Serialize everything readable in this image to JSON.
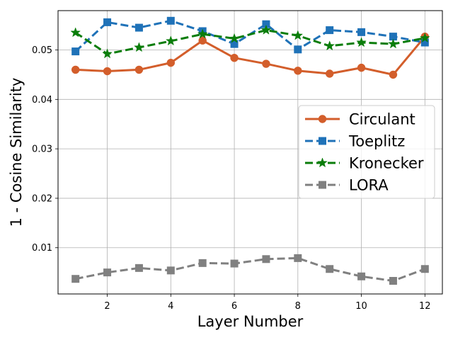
{
  "chart_data": {
    "type": "line",
    "title": "",
    "xlabel": "Layer Number",
    "ylabel": "1 - Cosine Similarity",
    "xlim": [
      0.45,
      12.55
    ],
    "ylim": [
      0.00065,
      0.05795
    ],
    "xticks": [
      2,
      4,
      6,
      8,
      10,
      12
    ],
    "xtick_labels": [
      "2",
      "4",
      "6",
      "8",
      "10",
      "12"
    ],
    "yticks": [
      0.01,
      0.02,
      0.03,
      0.04,
      0.05
    ],
    "ytick_labels": [
      "0.01",
      "0.02",
      "0.03",
      "0.04",
      "0.05"
    ],
    "grid": true,
    "legend_position": "center-right",
    "x": [
      1,
      2,
      3,
      4,
      5,
      6,
      7,
      8,
      9,
      10,
      11,
      12
    ],
    "series": [
      {
        "name": "Circulant",
        "color": "#d35e2b",
        "marker": "circle",
        "line_style": "solid",
        "values": [
          0.046,
          0.0457,
          0.046,
          0.0474,
          0.0519,
          0.0484,
          0.0472,
          0.0458,
          0.0452,
          0.0464,
          0.045,
          0.0527
        ]
      },
      {
        "name": "Toeplitz",
        "color": "#1f72b8",
        "marker": "square",
        "line_style": "dashed",
        "values": [
          0.0497,
          0.0556,
          0.0545,
          0.0559,
          0.0538,
          0.0512,
          0.0552,
          0.0501,
          0.054,
          0.0536,
          0.0527,
          0.0515
        ]
      },
      {
        "name": "Kronecker",
        "color": "#0a7d0a",
        "marker": "star",
        "line_style": "dashed",
        "values": [
          0.0535,
          0.0492,
          0.0505,
          0.0518,
          0.0532,
          0.0523,
          0.054,
          0.0529,
          0.0508,
          0.0515,
          0.0512,
          0.0524
        ]
      },
      {
        "name": "LORA",
        "color": "#808080",
        "marker": "square",
        "line_style": "dashed",
        "values": [
          0.0037,
          0.005,
          0.0059,
          0.0054,
          0.0069,
          0.0068,
          0.0077,
          0.0079,
          0.0057,
          0.0042,
          0.0033,
          0.0057
        ]
      }
    ]
  }
}
